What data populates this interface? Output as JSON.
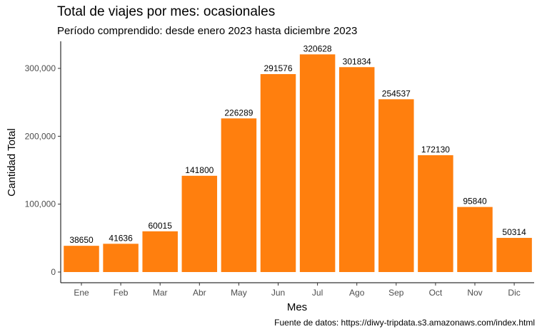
{
  "chart_data": {
    "type": "bar",
    "title": "Total de viajes por mes: ocasionales",
    "subtitle": "Período comprendido: desde enero 2023 hasta diciembre 2023",
    "caption": "Fuente de datos: https://diwy-tripdata.s3.amazonaws.com/index.html",
    "xlabel": "Mes",
    "ylabel": "Cantidad Total",
    "categories": [
      "Ene",
      "Feb",
      "Mar",
      "Abr",
      "May",
      "Jun",
      "Jul",
      "Ago",
      "Sep",
      "Oct",
      "Nov",
      "Dic"
    ],
    "values": [
      38650,
      41636,
      60015,
      141800,
      226289,
      291576,
      320628,
      301834,
      254537,
      172130,
      95840,
      50314
    ],
    "data_labels": [
      "38650",
      "41636",
      "60015",
      "141800",
      "226289",
      "291576",
      "320628",
      "301834",
      "254537",
      "172130",
      "95840",
      "50314"
    ],
    "yticks": [
      0,
      100000,
      200000,
      300000
    ],
    "ytick_labels": [
      "0",
      "100,000",
      "200,000",
      "300,000"
    ],
    "ylim": [
      0,
      336659
    ],
    "grid": false,
    "legend": "none",
    "bar_color": "#ff7f0e"
  }
}
